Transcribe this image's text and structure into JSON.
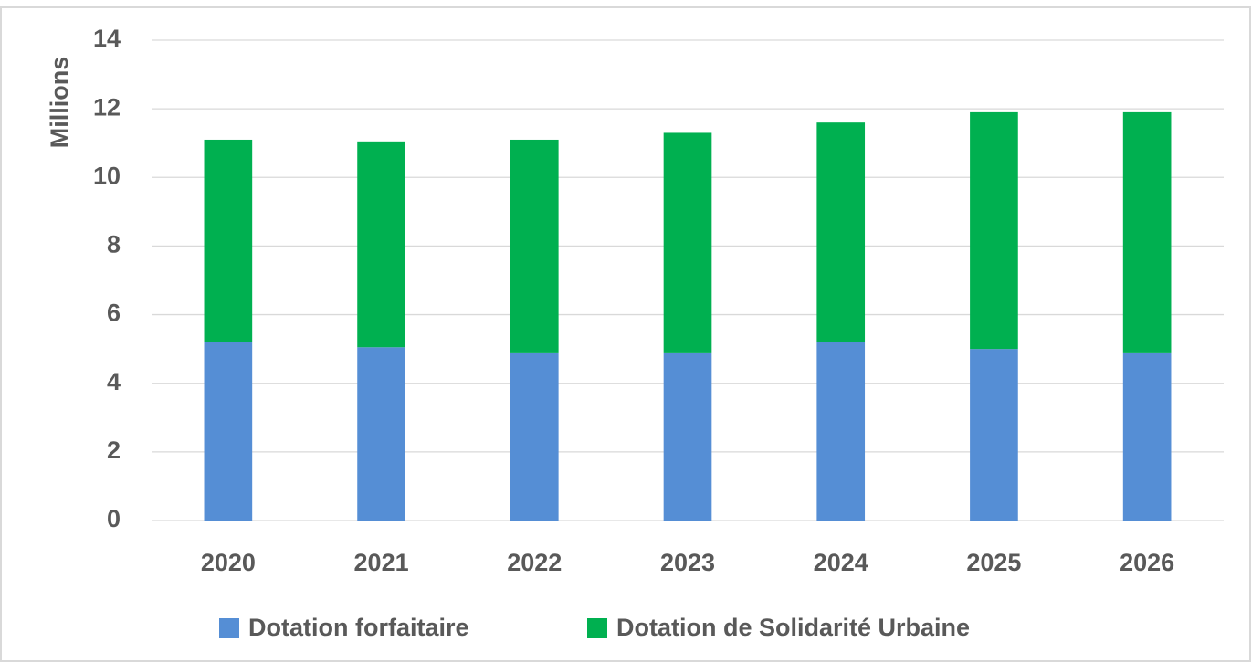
{
  "chart_data": {
    "type": "stacked_bar",
    "y_label": "Millions",
    "categories": [
      "2020",
      "2021",
      "2022",
      "2023",
      "2024",
      "2025",
      "2026"
    ],
    "series": [
      {
        "name": "Dotation forfaitaire",
        "color": "#558ed5",
        "values": [
          5.2,
          5.05,
          4.9,
          4.9,
          5.2,
          5.0,
          4.9
        ]
      },
      {
        "name": "Dotation de Solidarité Urbaine",
        "color": "#00b050",
        "values": [
          5.9,
          6.0,
          6.2,
          6.4,
          6.4,
          6.9,
          7.0
        ]
      }
    ],
    "ylim": [
      0,
      14
    ],
    "yticks": [
      0,
      2,
      4,
      6,
      8,
      10,
      12,
      14
    ],
    "grid": true,
    "legend": "bottom"
  }
}
